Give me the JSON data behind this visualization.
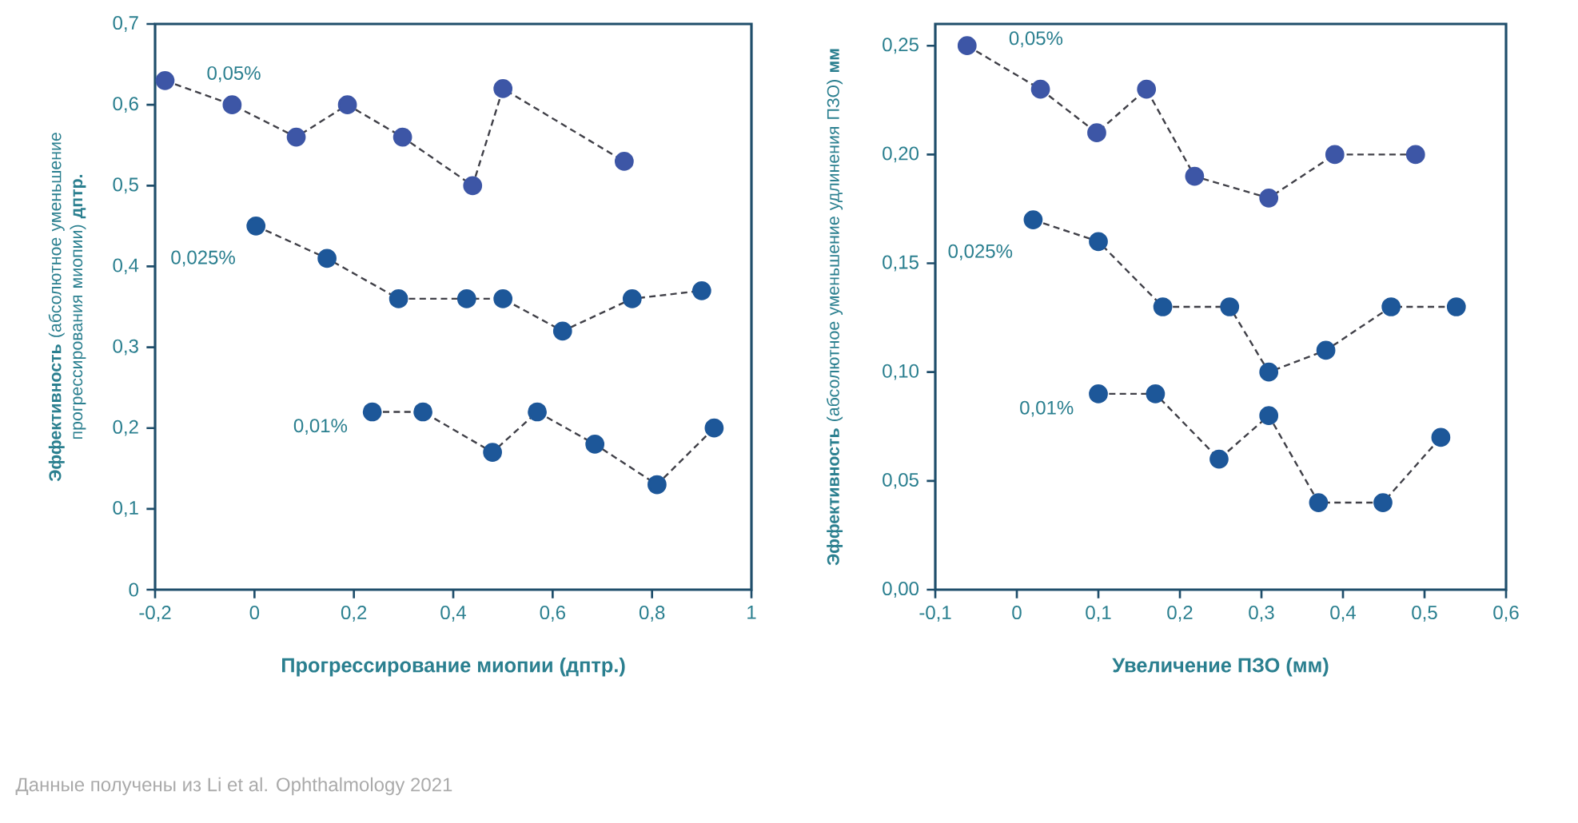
{
  "chart_data": [
    {
      "type": "line",
      "xlabel": "Прогрессирование миопии (дптр.)",
      "ylabel": "**Эффективность** (абсолютное уменьшение прогрессирования миопии) **дптр.**",
      "marker": "circle",
      "line_style": "dashed",
      "xlim": [
        -0.2,
        1
      ],
      "xticks": [
        {
          "value": -0.2,
          "label": "-0,2"
        },
        0,
        {
          "value": 0.2,
          "label": "0,2"
        },
        {
          "value": 0.4,
          "label": "0,4"
        },
        {
          "value": 0.6,
          "label": "0,6"
        },
        {
          "value": 0.8,
          "label": "0,8"
        },
        1
      ],
      "ylim": [
        0,
        0.7
      ],
      "yticks": [
        0,
        {
          "value": 0.1,
          "label": "0,1"
        },
        {
          "value": 0.2,
          "label": "0,2"
        },
        {
          "value": 0.3,
          "label": "0,3"
        },
        {
          "value": 0.4,
          "label": "0,4"
        },
        {
          "value": 0.5,
          "label": "0,5"
        },
        {
          "value": 0.6,
          "label": "0,6"
        },
        {
          "value": 0.7,
          "label": "0,7"
        }
      ],
      "series": [
        {
          "name": "0,05%",
          "color": "#3d56a6",
          "x": [
            -0.18,
            -0.045,
            0.084,
            0.187,
            0.298,
            0.439,
            0.5,
            0.744
          ],
          "values": [
            0.63,
            0.6,
            0.56,
            0.6,
            0.56,
            0.5,
            0.62,
            0.53
          ]
        },
        {
          "name": "0,025%",
          "color": "#1d5799",
          "x": [
            0.003,
            0.146,
            0.29,
            0.427,
            0.5,
            0.62,
            0.76,
            0.9
          ],
          "values": [
            0.45,
            0.41,
            0.36,
            0.36,
            0.36,
            0.32,
            0.36,
            0.37
          ]
        },
        {
          "name": "0,01%",
          "color": "#1d5799",
          "x": [
            0.237,
            0.339,
            0.479,
            0.569,
            0.685,
            0.81,
            0.925
          ],
          "values": [
            0.22,
            0.22,
            0.17,
            0.22,
            0.18,
            0.13,
            0.2
          ]
        }
      ],
      "annotations": [
        "Данные получены из Li et al. Ophthalmology 2021"
      ]
    },
    {
      "type": "line",
      "xlabel": "Увеличение ПЗО (мм)",
      "ylabel": "**Эффективность** (абсолютное уменьшение удлинения ПЗО) **мм**",
      "marker": "circle",
      "line_style": "dashed",
      "xlim": [
        -0.1,
        0.6
      ],
      "xticks": [
        {
          "value": -0.1,
          "label": "-0,1"
        },
        0,
        {
          "value": 0.1,
          "label": "0,1"
        },
        {
          "value": 0.2,
          "label": "0,2"
        },
        {
          "value": 0.3,
          "label": "0,3"
        },
        {
          "value": 0.4,
          "label": "0,4"
        },
        {
          "value": 0.5,
          "label": "0,5"
        },
        {
          "value": 0.6,
          "label": "0,6"
        }
      ],
      "ylim": [
        0,
        0.26
      ],
      "yticks": [
        {
          "value": 0,
          "label": "0,00"
        },
        {
          "value": 0.05,
          "label": "0,05"
        },
        {
          "value": 0.1,
          "label": "0,10"
        },
        {
          "value": 0.15,
          "label": "0,15"
        },
        {
          "value": 0.2,
          "label": "0,20"
        },
        {
          "value": 0.25,
          "label": "0,25"
        }
      ],
      "series": [
        {
          "name": "0,05%",
          "color": "#3d56a6",
          "x": [
            -0.061,
            0.029,
            0.098,
            0.159,
            0.218,
            0.309,
            0.39,
            0.489
          ],
          "values": [
            0.25,
            0.23,
            0.21,
            0.23,
            0.19,
            0.18,
            0.2,
            0.2
          ]
        },
        {
          "name": "0,025%",
          "color": "#1d5799",
          "x": [
            0.02,
            0.1,
            0.179,
            0.261,
            0.309,
            0.379,
            0.459,
            0.539
          ],
          "values": [
            0.17,
            0.16,
            0.13,
            0.13,
            0.1,
            0.11,
            0.13,
            0.13
          ]
        },
        {
          "name": "0,01%",
          "color": "#1d5799",
          "x": [
            0.1,
            0.17,
            0.248,
            0.309,
            0.37,
            0.449,
            0.52
          ],
          "values": [
            0.09,
            0.09,
            0.06,
            0.08,
            0.04,
            0.04,
            0.07
          ]
        }
      ]
    }
  ]
}
